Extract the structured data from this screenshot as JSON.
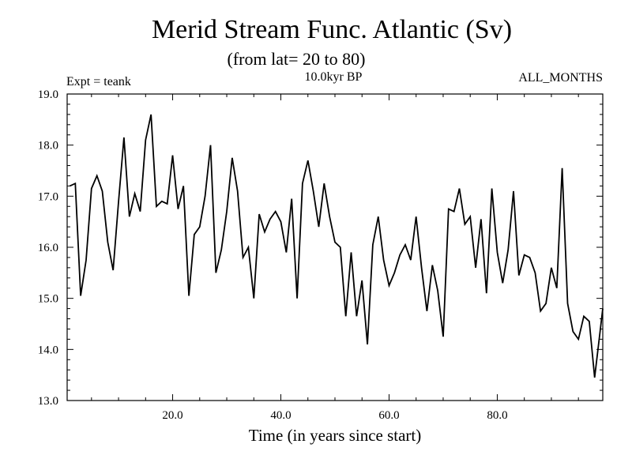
{
  "chart_data": {
    "type": "line",
    "title": "Merid Stream Func. Atlantic (Sv)",
    "subtitle": "(from lat= 20 to 80)",
    "annotations": {
      "left": "Expt = teank",
      "center": "10.0kyr BP",
      "right": "ALL_MONTHS"
    },
    "xlabel": "Time (in years since start)",
    "ylabel": "",
    "xlim": [
      0.5,
      99.5
    ],
    "ylim": [
      13.0,
      19.0
    ],
    "x_ticks": [
      20,
      40,
      60,
      80
    ],
    "x_tick_labels": [
      "20.0",
      "40.0",
      "60.0",
      "80.0"
    ],
    "y_ticks": [
      13,
      14,
      15,
      16,
      17,
      18,
      19
    ],
    "y_tick_labels": [
      "13.0",
      "14.0",
      "15.0",
      "16.0",
      "17.0",
      "18.0",
      "19.0"
    ],
    "grid": false,
    "series": [
      {
        "name": "Merid Stream Func.",
        "x": [
          1,
          2,
          3,
          4,
          5,
          6,
          7,
          8,
          9,
          10,
          11,
          12,
          13,
          14,
          15,
          16,
          17,
          18,
          19,
          20,
          21,
          22,
          23,
          24,
          25,
          26,
          27,
          28,
          29,
          30,
          31,
          32,
          33,
          34,
          35,
          36,
          37,
          38,
          39,
          40,
          41,
          42,
          43,
          44,
          45,
          46,
          47,
          48,
          49,
          50,
          51,
          52,
          53,
          54,
          55,
          56,
          57,
          58,
          59,
          60,
          61,
          62,
          63,
          64,
          65,
          66,
          67,
          68,
          69,
          70,
          71,
          72,
          73,
          74,
          75,
          76,
          77,
          78,
          79,
          80,
          81,
          82,
          83,
          84,
          85,
          86,
          87,
          88,
          89,
          90,
          91,
          92,
          93,
          94,
          95,
          96,
          97,
          98,
          99,
          100
        ],
        "values": [
          17.2,
          17.25,
          15.05,
          15.75,
          17.15,
          17.4,
          17.1,
          16.1,
          15.55,
          16.9,
          18.15,
          16.6,
          17.05,
          16.7,
          18.1,
          18.6,
          16.8,
          16.9,
          16.85,
          17.8,
          16.75,
          17.2,
          15.05,
          16.25,
          16.4,
          17.0,
          18.0,
          15.5,
          15.95,
          16.7,
          17.75,
          17.1,
          15.8,
          16.0,
          15.0,
          16.65,
          16.3,
          16.55,
          16.7,
          16.5,
          15.9,
          16.95,
          15.0,
          17.25,
          17.7,
          17.1,
          16.4,
          17.25,
          16.6,
          16.1,
          16.0,
          14.65,
          15.9,
          14.65,
          15.35,
          14.1,
          16.05,
          16.6,
          15.75,
          15.25,
          15.5,
          15.85,
          16.05,
          15.75,
          16.6,
          15.6,
          14.75,
          15.65,
          15.15,
          14.25,
          16.75,
          16.7,
          17.15,
          16.45,
          16.6,
          15.6,
          16.55,
          15.1,
          17.15,
          15.9,
          15.3,
          15.95,
          17.1,
          15.45,
          15.85,
          15.8,
          15.5,
          14.75,
          14.9,
          15.6,
          15.2,
          17.55,
          14.9,
          14.35,
          14.2,
          14.65,
          14.55,
          13.45,
          14.35,
          14.8
        ]
      }
    ]
  }
}
